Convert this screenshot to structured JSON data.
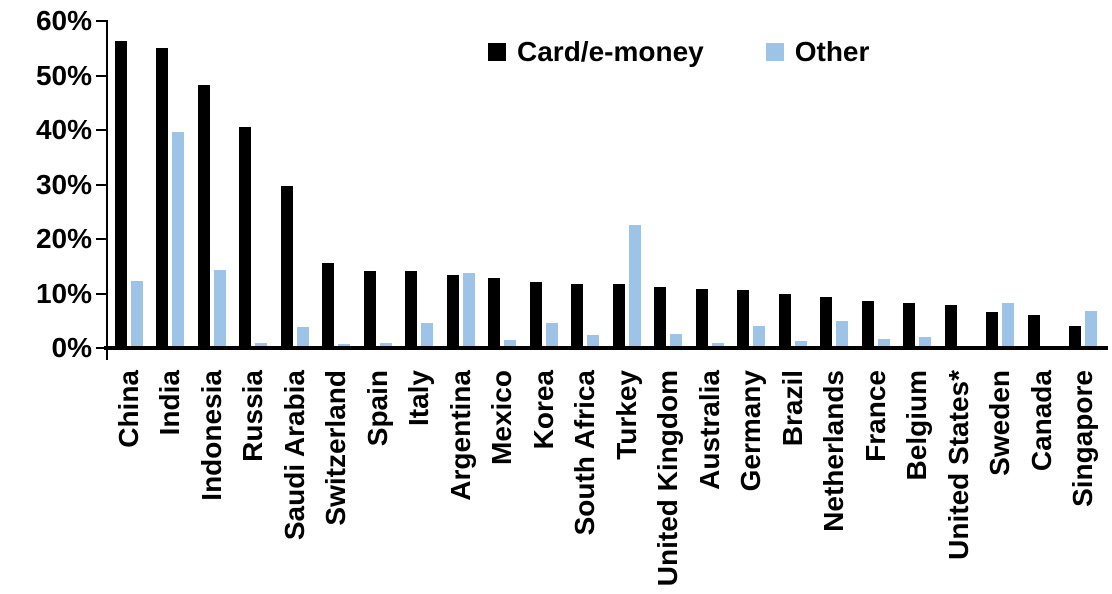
{
  "chart_data": {
    "type": "bar",
    "title": "",
    "categories": [
      "China",
      "India",
      "Indonesia",
      "Russia",
      "Saudi Arabia",
      "Switzerland",
      "Spain",
      "Italy",
      "Argentina",
      "Mexico",
      "Korea",
      "South Africa",
      "Turkey",
      "United Kingdom",
      "Australia",
      "Germany",
      "Brazil",
      "Netherlands",
      "France",
      "Belgium",
      "United States*",
      "Sweden",
      "Canada",
      "Singapore"
    ],
    "series": [
      {
        "name": "Card/e-money",
        "color": "#000000",
        "values": [
          56.3,
          55.0,
          48.3,
          40.5,
          29.8,
          15.6,
          14.2,
          14.1,
          13.4,
          12.9,
          12.2,
          11.8,
          11.7,
          11.2,
          10.9,
          10.6,
          10.0,
          9.3,
          8.7,
          8.2,
          7.9,
          6.6,
          6.0,
          4.0
        ]
      },
      {
        "name": "Other",
        "color": "#9DC3E6",
        "values": [
          12.3,
          39.7,
          14.4,
          1.0,
          3.8,
          0.7,
          0.9,
          4.6,
          13.8,
          1.4,
          4.6,
          2.4,
          22.6,
          2.5,
          1.0,
          4.1,
          1.3,
          4.9,
          1.6,
          2.1,
          0.4,
          8.2,
          0,
          6.7
        ]
      }
    ],
    "ylim": [
      0,
      60
    ],
    "yticks": [
      0,
      10,
      20,
      30,
      40,
      50,
      60
    ],
    "ytick_labels": [
      "0%",
      "10%",
      "20%",
      "30%",
      "40%",
      "50%",
      "60%"
    ],
    "xlabel": "",
    "ylabel": "",
    "grid": false,
    "legend_position": "top-center"
  }
}
